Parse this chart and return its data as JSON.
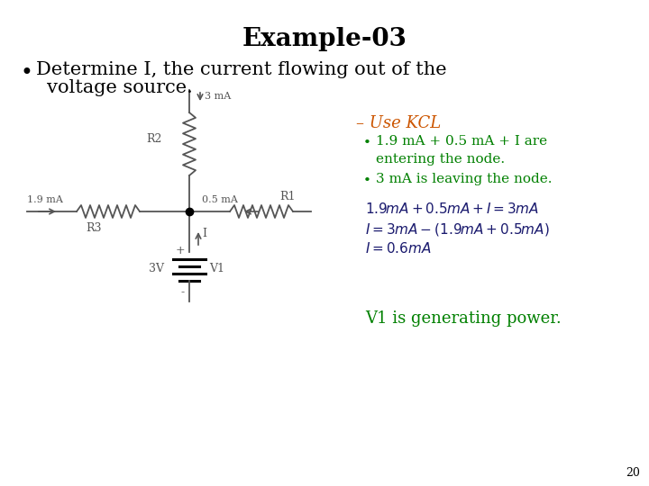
{
  "title": "Example-03",
  "title_fontsize": 20,
  "title_fontweight": "bold",
  "bg_color": "#ffffff",
  "bullet_text_line1": "Determine I, the current flowing out of the",
  "bullet_text_line2": "voltage source.",
  "bullet_fontsize": 15,
  "kcl_header": "– Use KCL",
  "kcl_header_color": "#cc5500",
  "kcl_bullet1_line1": "1.9 mA + 0.5 mA + I are",
  "kcl_bullet1_line2": "entering the node.",
  "kcl_bullet2": "3 mA is leaving the node.",
  "kcl_color": "#008000",
  "v1_text": "V1 is generating power.",
  "v1_color": "#008000",
  "page_num": "20",
  "circuit_color": "#555555",
  "node_dot_color": "#000000"
}
